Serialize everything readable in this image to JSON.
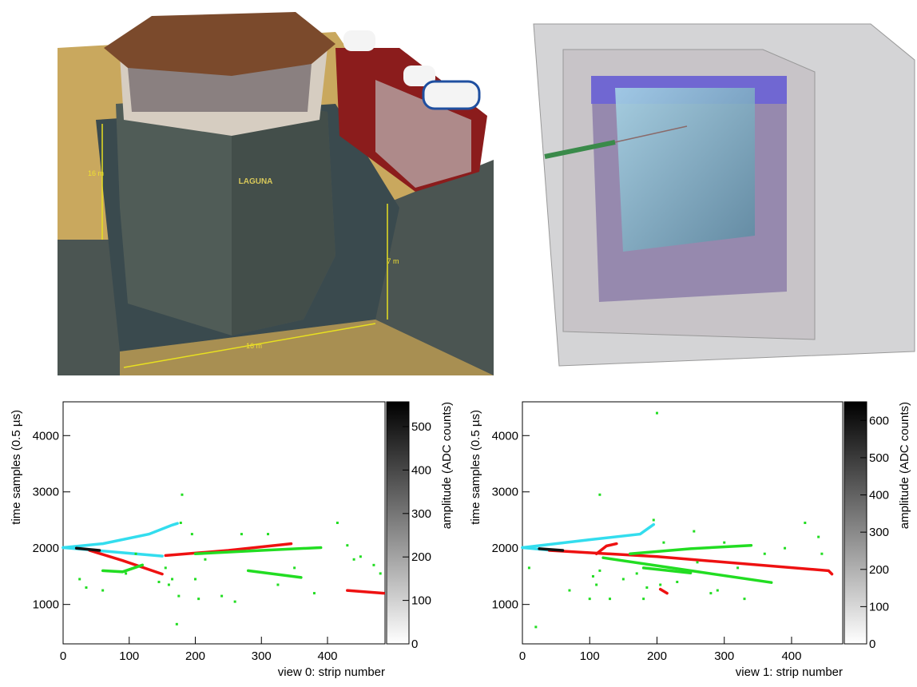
{
  "renderings": {
    "labels": [
      "LAGUNA",
      "16 m",
      "7 m",
      "16 m"
    ]
  },
  "chart_data": [
    {
      "type": "line",
      "xlabel": "view 0: strip number",
      "ylabel": "time samples (0.5 µs)",
      "zlabel": "amplitude (ADC counts)",
      "xlim": [
        0,
        487
      ],
      "ylim": [
        300,
        4600
      ],
      "zlim": [
        0,
        557
      ],
      "xticks": [
        0,
        100,
        200,
        300,
        400
      ],
      "yticks": [
        1000,
        2000,
        3000,
        4000
      ],
      "zticks": [
        0,
        100,
        200,
        300,
        400,
        500
      ],
      "tracks": [
        {
          "color": "#33ddee",
          "x": [
            0,
            60,
            130,
            165,
            173
          ],
          "values": [
            2010,
            2080,
            2250,
            2410,
            2440
          ]
        },
        {
          "color": "#33ddee",
          "x": [
            0,
            60,
            150
          ],
          "values": [
            2010,
            1950,
            1860
          ]
        },
        {
          "color": "#ee1111",
          "x": [
            155,
            250,
            345
          ],
          "values": [
            1870,
            1960,
            2080
          ]
        },
        {
          "color": "#ee1111",
          "x": [
            40,
            90,
            150
          ],
          "values": [
            1960,
            1780,
            1540
          ]
        },
        {
          "color": "#ee1111",
          "x": [
            430,
            485
          ],
          "values": [
            1250,
            1200
          ]
        },
        {
          "color": "#22dd22",
          "x": [
            200,
            300,
            390
          ],
          "values": [
            1900,
            1960,
            2010
          ]
        },
        {
          "color": "#22dd22",
          "x": [
            280,
            360
          ],
          "values": [
            1600,
            1480
          ]
        },
        {
          "color": "#22dd22",
          "x": [
            60,
            90,
            120
          ],
          "values": [
            1600,
            1580,
            1700
          ]
        },
        {
          "color": "#111111",
          "x": [
            20,
            55
          ],
          "values": [
            2000,
            1960
          ]
        }
      ],
      "hits": {
        "color": "#22dd22",
        "x": [
          25,
          35,
          60,
          95,
          110,
          145,
          155,
          160,
          165,
          175,
          180,
          195,
          205,
          215,
          240,
          260,
          270,
          310,
          325,
          350,
          380,
          415,
          430,
          440,
          450,
          470,
          480,
          178,
          200,
          172
        ],
        "values": [
          1450,
          1300,
          1250,
          1550,
          1900,
          1400,
          1650,
          1350,
          1450,
          1150,
          2950,
          2250,
          1100,
          1800,
          1150,
          1050,
          2250,
          2250,
          1350,
          1650,
          1200,
          2450,
          2050,
          1800,
          1850,
          1700,
          1550,
          2450,
          1450,
          650
        ]
      }
    },
    {
      "type": "line",
      "xlabel": "view 1: strip number",
      "ylabel": "time samples (0.5 µs)",
      "zlabel": "amplitude (ADC counts)",
      "xlim": [
        0,
        476
      ],
      "ylim": [
        300,
        4600
      ],
      "zlim": [
        0,
        650
      ],
      "xticks": [
        0,
        100,
        200,
        300,
        400
      ],
      "yticks": [
        1000,
        2000,
        3000,
        4000
      ],
      "zticks": [
        0,
        100,
        200,
        300,
        400,
        500,
        600
      ],
      "tracks": [
        {
          "color": "#33ddee",
          "x": [
            0,
            100,
            175,
            195
          ],
          "values": [
            2010,
            2150,
            2250,
            2420
          ]
        },
        {
          "color": "#33ddee",
          "x": [
            0,
            45
          ],
          "values": [
            2010,
            1960
          ]
        },
        {
          "color": "#ee1111",
          "x": [
            40,
            200,
            455,
            460
          ],
          "values": [
            1960,
            1850,
            1600,
            1540
          ]
        },
        {
          "color": "#ee1111",
          "x": [
            110,
            125,
            140
          ],
          "values": [
            1900,
            2040,
            2080
          ]
        },
        {
          "color": "#ee1111",
          "x": [
            205,
            215
          ],
          "values": [
            1270,
            1200
          ]
        },
        {
          "color": "#22dd22",
          "x": [
            160,
            250,
            340
          ],
          "values": [
            1900,
            1990,
            2050
          ]
        },
        {
          "color": "#22dd22",
          "x": [
            120,
            250,
            370
          ],
          "values": [
            1830,
            1600,
            1390
          ]
        },
        {
          "color": "#22dd22",
          "x": [
            180,
            250
          ],
          "values": [
            1650,
            1560
          ]
        },
        {
          "color": "#111111",
          "x": [
            25,
            60
          ],
          "values": [
            1990,
            1960
          ]
        }
      ],
      "hits": {
        "color": "#22dd22",
        "x": [
          10,
          20,
          70,
          105,
          110,
          115,
          130,
          150,
          170,
          180,
          185,
          200,
          195,
          210,
          230,
          260,
          280,
          300,
          320,
          360,
          390,
          420,
          440,
          445,
          115,
          100,
          205,
          255,
          290,
          330
        ],
        "values": [
          1650,
          600,
          1250,
          1500,
          1350,
          2950,
          1100,
          1450,
          1550,
          1100,
          1300,
          4400,
          2500,
          2100,
          1400,
          1750,
          1200,
          2100,
          1650,
          1900,
          2000,
          2450,
          2200,
          1900,
          1600,
          1100,
          1350,
          2300,
          1250,
          1100
        ]
      }
    }
  ]
}
